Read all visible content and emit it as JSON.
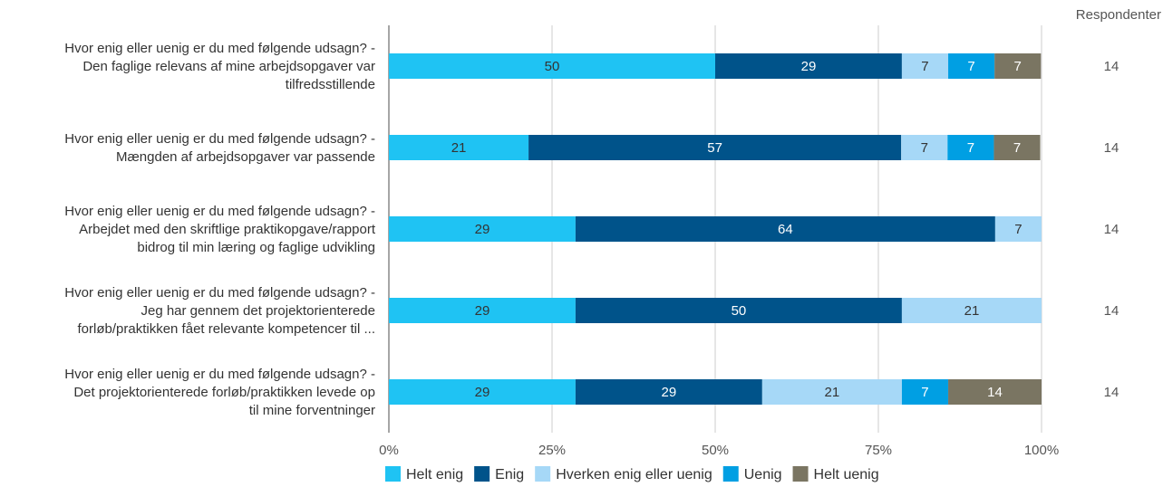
{
  "chart_data": {
    "type": "bar",
    "orientation": "horizontal-stacked-percent",
    "categories": [
      [
        "Hvor enig eller uenig er du med følgende udsagn? -",
        "Den faglige relevans af mine arbejdsopgaver var",
        "tilfredsstillende"
      ],
      [
        "Hvor enig eller uenig er du med følgende udsagn? -",
        "Mængden af arbejdsopgaver var passende"
      ],
      [
        "Hvor enig eller uenig er du med følgende udsagn? -",
        "Arbejdet med den skriftlige praktikopgave/rapport",
        "bidrog til min læring og faglige udvikling"
      ],
      [
        "Hvor enig eller uenig er du med følgende udsagn? -",
        "Jeg har gennem det projektorienterede",
        "forløb/praktikken fået relevante kompetencer til ..."
      ],
      [
        "Hvor enig eller uenig er du med følgende udsagn? -",
        "Det projektorienterede forløb/praktikken levede op",
        "til mine forventninger"
      ]
    ],
    "series": [
      {
        "name": "Helt enig",
        "color": "#1FC3F3",
        "label_color": "#333333",
        "values": [
          50,
          21.4,
          28.6,
          28.6,
          28.6
        ],
        "labels": [
          "50",
          "21",
          "29",
          "29",
          "29"
        ]
      },
      {
        "name": "Enig",
        "color": "#00538A",
        "label_color": "#ffffff",
        "values": [
          28.6,
          57.1,
          64.3,
          50,
          28.6
        ],
        "labels": [
          "29",
          "57",
          "64",
          "50",
          "29"
        ]
      },
      {
        "name": "Hverken enig eller uenig",
        "color": "#A6D8F7",
        "label_color": "#333333",
        "values": [
          7.1,
          7.1,
          7.1,
          21.4,
          21.4
        ],
        "labels": [
          "7",
          "7",
          "7",
          "21",
          "21"
        ]
      },
      {
        "name": "Uenig",
        "color": "#009FE3",
        "label_color": "#ffffff",
        "values": [
          7.1,
          7.1,
          0,
          0,
          7.1
        ],
        "labels": [
          "7",
          "7",
          "",
          "",
          "7"
        ]
      },
      {
        "name": "Helt uenig",
        "color": "#7A7562",
        "label_color": "#ffffff",
        "values": [
          7.1,
          7.1,
          0,
          0,
          14.3
        ],
        "labels": [
          "7",
          "7",
          "",
          "",
          "14"
        ]
      }
    ],
    "xlim": [
      0,
      100
    ],
    "xticks": [
      "0%",
      "25%",
      "50%",
      "75%",
      "100%"
    ],
    "grid": true,
    "legend_position": "bottom",
    "respondents_header": "Respondenter",
    "respondents": [
      "14",
      "14",
      "14",
      "14",
      "14"
    ]
  }
}
